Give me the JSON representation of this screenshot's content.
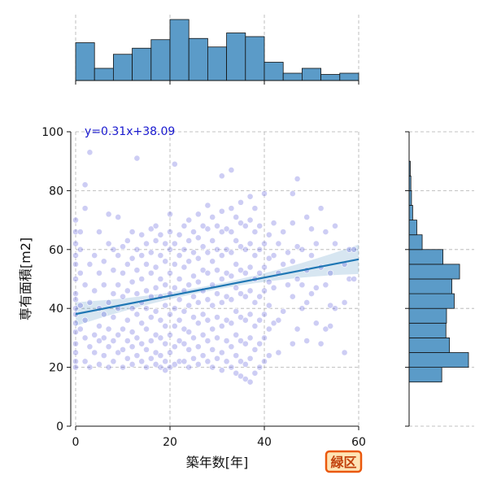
{
  "chart_data": {
    "type": "scatter",
    "main": {
      "xlabel": "築年数[年]",
      "ylabel": "専有面積[m2]",
      "xlim": [
        0,
        60
      ],
      "ylim": [
        0,
        100
      ],
      "xticks": [
        0,
        20,
        40,
        60
      ],
      "yticks": [
        0,
        20,
        40,
        60,
        80,
        100
      ],
      "grid": true,
      "regression": {
        "slope": 0.31,
        "intercept": 38.09,
        "label": "y=0.31x+38.09"
      },
      "points": [
        [
          0,
          20
        ],
        [
          0,
          22
        ],
        [
          0,
          25
        ],
        [
          0,
          28
        ],
        [
          0,
          32
        ],
        [
          0,
          35
        ],
        [
          0,
          38
        ],
        [
          0,
          40
        ],
        [
          0,
          43
        ],
        [
          0,
          45
        ],
        [
          0,
          50
        ],
        [
          0,
          55
        ],
        [
          0,
          58
        ],
        [
          0,
          62
        ],
        [
          0,
          66
        ],
        [
          0,
          70
        ],
        [
          1,
          33
        ],
        [
          1,
          41
        ],
        [
          1,
          52
        ],
        [
          1,
          60
        ],
        [
          1,
          66
        ],
        [
          2,
          22
        ],
        [
          2,
          30
        ],
        [
          2,
          36
        ],
        [
          2,
          48
        ],
        [
          2,
          74
        ],
        [
          2,
          82
        ],
        [
          3,
          20
        ],
        [
          3,
          27
        ],
        [
          3,
          42
        ],
        [
          3,
          55
        ],
        [
          3,
          93
        ],
        [
          4,
          25
        ],
        [
          4,
          31
        ],
        [
          4,
          46
        ],
        [
          4,
          58
        ],
        [
          5,
          21
        ],
        [
          5,
          29
        ],
        [
          5,
          34
        ],
        [
          5,
          40
        ],
        [
          5,
          52
        ],
        [
          5,
          66
        ],
        [
          6,
          24
        ],
        [
          6,
          30
        ],
        [
          6,
          38
        ],
        [
          6,
          48
        ],
        [
          6,
          56
        ],
        [
          7,
          20
        ],
        [
          7,
          27
        ],
        [
          7,
          33
        ],
        [
          7,
          42
        ],
        [
          7,
          62
        ],
        [
          7,
          72
        ],
        [
          8,
          22
        ],
        [
          8,
          29
        ],
        [
          8,
          37
        ],
        [
          8,
          45
        ],
        [
          8,
          53
        ],
        [
          8,
          60
        ],
        [
          9,
          25
        ],
        [
          9,
          31
        ],
        [
          9,
          40
        ],
        [
          9,
          48
        ],
        [
          9,
          58
        ],
        [
          9,
          71
        ],
        [
          10,
          20
        ],
        [
          10,
          26
        ],
        [
          10,
          33
        ],
        [
          10,
          44
        ],
        [
          10,
          52
        ],
        [
          10,
          61
        ],
        [
          11,
          23
        ],
        [
          11,
          29
        ],
        [
          11,
          36
        ],
        [
          11,
          46
        ],
        [
          11,
          55
        ],
        [
          11,
          63
        ],
        [
          12,
          21
        ],
        [
          12,
          27
        ],
        [
          12,
          32
        ],
        [
          12,
          40
        ],
        [
          12,
          49
        ],
        [
          12,
          57
        ],
        [
          12,
          66
        ],
        [
          13,
          24
        ],
        [
          13,
          30
        ],
        [
          13,
          38
        ],
        [
          13,
          45
        ],
        [
          13,
          53
        ],
        [
          13,
          60
        ],
        [
          13,
          91
        ],
        [
          14,
          22
        ],
        [
          14,
          28
        ],
        [
          14,
          35
        ],
        [
          14,
          42
        ],
        [
          14,
          50
        ],
        [
          14,
          58
        ],
        [
          14,
          65
        ],
        [
          15,
          20
        ],
        [
          15,
          26
        ],
        [
          15,
          33
        ],
        [
          15,
          40
        ],
        [
          15,
          46
        ],
        [
          15,
          55
        ],
        [
          15,
          62
        ],
        [
          16,
          23
        ],
        [
          16,
          29
        ],
        [
          16,
          37
        ],
        [
          16,
          44
        ],
        [
          16,
          52
        ],
        [
          16,
          59
        ],
        [
          16,
          67
        ],
        [
          17,
          21
        ],
        [
          17,
          25
        ],
        [
          17,
          31
        ],
        [
          17,
          39
        ],
        [
          17,
          47
        ],
        [
          17,
          54
        ],
        [
          17,
          63
        ],
        [
          17,
          68
        ],
        [
          18,
          20
        ],
        [
          18,
          24
        ],
        [
          18,
          30
        ],
        [
          18,
          36
        ],
        [
          18,
          44
        ],
        [
          18,
          50
        ],
        [
          18,
          58
        ],
        [
          18,
          65
        ],
        [
          19,
          19
        ],
        [
          19,
          22
        ],
        [
          19,
          28
        ],
        [
          19,
          34
        ],
        [
          19,
          41
        ],
        [
          19,
          48
        ],
        [
          19,
          56
        ],
        [
          19,
          62
        ],
        [
          20,
          20
        ],
        [
          20,
          25
        ],
        [
          20,
          31
        ],
        [
          20,
          38
        ],
        [
          20,
          45
        ],
        [
          20,
          52
        ],
        [
          20,
          60
        ],
        [
          20,
          66
        ],
        [
          20,
          72
        ],
        [
          21,
          21
        ],
        [
          21,
          27
        ],
        [
          21,
          34
        ],
        [
          21,
          40
        ],
        [
          21,
          47
        ],
        [
          21,
          55
        ],
        [
          21,
          62
        ],
        [
          21,
          89
        ],
        [
          22,
          22
        ],
        [
          22,
          29
        ],
        [
          22,
          36
        ],
        [
          22,
          43
        ],
        [
          22,
          50
        ],
        [
          22,
          58
        ],
        [
          22,
          65
        ],
        [
          23,
          22
        ],
        [
          23,
          28
        ],
        [
          23,
          33
        ],
        [
          23,
          39
        ],
        [
          23,
          46
        ],
        [
          23,
          54
        ],
        [
          23,
          60
        ],
        [
          23,
          68
        ],
        [
          24,
          20
        ],
        [
          24,
          26
        ],
        [
          24,
          32
        ],
        [
          24,
          41
        ],
        [
          24,
          48
        ],
        [
          24,
          56
        ],
        [
          24,
          63
        ],
        [
          24,
          70
        ],
        [
          25,
          23
        ],
        [
          25,
          30
        ],
        [
          25,
          37
        ],
        [
          25,
          44
        ],
        [
          25,
          51
        ],
        [
          25,
          59
        ],
        [
          25,
          66
        ],
        [
          26,
          21
        ],
        [
          26,
          27
        ],
        [
          26,
          35
        ],
        [
          26,
          42
        ],
        [
          26,
          49
        ],
        [
          26,
          57
        ],
        [
          26,
          64
        ],
        [
          26,
          72
        ],
        [
          27,
          24
        ],
        [
          27,
          31
        ],
        [
          27,
          38
        ],
        [
          27,
          46
        ],
        [
          27,
          53
        ],
        [
          27,
          61
        ],
        [
          27,
          68
        ],
        [
          28,
          22
        ],
        [
          28,
          29
        ],
        [
          28,
          36
        ],
        [
          28,
          43
        ],
        [
          28,
          52
        ],
        [
          28,
          59
        ],
        [
          28,
          67
        ],
        [
          28,
          75
        ],
        [
          29,
          20
        ],
        [
          29,
          26
        ],
        [
          29,
          33
        ],
        [
          29,
          41
        ],
        [
          29,
          48
        ],
        [
          29,
          56
        ],
        [
          29,
          63
        ],
        [
          29,
          71
        ],
        [
          30,
          23
        ],
        [
          30,
          30
        ],
        [
          30,
          37
        ],
        [
          30,
          45
        ],
        [
          30,
          53
        ],
        [
          30,
          60
        ],
        [
          30,
          68
        ],
        [
          31,
          19
        ],
        [
          31,
          25
        ],
        [
          31,
          34
        ],
        [
          31,
          42
        ],
        [
          31,
          50
        ],
        [
          31,
          58
        ],
        [
          31,
          66
        ],
        [
          31,
          73
        ],
        [
          31,
          85
        ],
        [
          32,
          22
        ],
        [
          32,
          29
        ],
        [
          32,
          36
        ],
        [
          32,
          44
        ],
        [
          32,
          52
        ],
        [
          32,
          60
        ],
        [
          32,
          67
        ],
        [
          33,
          20
        ],
        [
          33,
          27
        ],
        [
          33,
          35
        ],
        [
          33,
          43
        ],
        [
          33,
          51
        ],
        [
          33,
          59
        ],
        [
          33,
          66
        ],
        [
          33,
          74
        ],
        [
          33,
          87
        ],
        [
          34,
          18
        ],
        [
          34,
          24
        ],
        [
          34,
          31
        ],
        [
          34,
          39
        ],
        [
          34,
          47
        ],
        [
          34,
          55
        ],
        [
          34,
          63
        ],
        [
          34,
          71
        ],
        [
          35,
          17
        ],
        [
          35,
          22
        ],
        [
          35,
          29
        ],
        [
          35,
          37
        ],
        [
          35,
          45
        ],
        [
          35,
          53
        ],
        [
          35,
          61
        ],
        [
          35,
          69
        ],
        [
          35,
          76
        ],
        [
          36,
          16
        ],
        [
          36,
          21
        ],
        [
          36,
          28
        ],
        [
          36,
          36
        ],
        [
          36,
          44
        ],
        [
          36,
          52
        ],
        [
          36,
          60
        ],
        [
          36,
          68
        ],
        [
          37,
          15
        ],
        [
          37,
          23
        ],
        [
          37,
          30
        ],
        [
          37,
          38
        ],
        [
          37,
          46
        ],
        [
          37,
          54
        ],
        [
          37,
          62
        ],
        [
          37,
          70
        ],
        [
          37,
          78
        ],
        [
          38,
          18
        ],
        [
          38,
          26
        ],
        [
          38,
          34
        ],
        [
          38,
          42
        ],
        [
          38,
          50
        ],
        [
          38,
          58
        ],
        [
          38,
          66
        ],
        [
          38,
          74
        ],
        [
          39,
          20
        ],
        [
          39,
          28
        ],
        [
          39,
          36
        ],
        [
          39,
          44
        ],
        [
          39,
          52
        ],
        [
          39,
          60
        ],
        [
          39,
          68
        ],
        [
          40,
          22
        ],
        [
          40,
          30
        ],
        [
          40,
          38
        ],
        [
          40,
          46
        ],
        [
          40,
          54
        ],
        [
          40,
          62
        ],
        [
          40,
          79
        ],
        [
          41,
          24
        ],
        [
          41,
          33
        ],
        [
          41,
          41
        ],
        [
          41,
          49
        ],
        [
          41,
          57
        ],
        [
          41,
          65
        ],
        [
          42,
          35
        ],
        [
          42,
          47
        ],
        [
          42,
          58
        ],
        [
          42,
          69
        ],
        [
          43,
          25
        ],
        [
          43,
          36
        ],
        [
          43,
          52
        ],
        [
          43,
          62
        ],
        [
          44,
          39
        ],
        [
          44,
          55
        ],
        [
          44,
          66
        ],
        [
          45,
          48
        ],
        [
          45,
          59
        ],
        [
          46,
          28
        ],
        [
          46,
          44
        ],
        [
          46,
          56
        ],
        [
          46,
          69
        ],
        [
          46,
          79
        ],
        [
          47,
          33
        ],
        [
          47,
          50
        ],
        [
          47,
          61
        ],
        [
          47,
          84
        ],
        [
          48,
          40
        ],
        [
          48,
          48
        ],
        [
          48,
          60
        ],
        [
          49,
          29
        ],
        [
          49,
          42
        ],
        [
          49,
          53
        ],
        [
          49,
          71
        ],
        [
          50,
          45
        ],
        [
          50,
          58
        ],
        [
          50,
          67
        ],
        [
          51,
          35
        ],
        [
          51,
          47
        ],
        [
          51,
          62
        ],
        [
          52,
          28
        ],
        [
          52,
          54
        ],
        [
          52,
          74
        ],
        [
          53,
          33
        ],
        [
          53,
          48
        ],
        [
          53,
          66
        ],
        [
          54,
          34
        ],
        [
          54,
          41
        ],
        [
          54,
          52
        ],
        [
          55,
          40
        ],
        [
          55,
          62
        ],
        [
          55,
          68
        ],
        [
          57,
          25
        ],
        [
          57,
          42
        ],
        [
          57,
          55
        ],
        [
          58,
          50
        ],
        [
          58,
          60
        ],
        [
          59,
          50
        ],
        [
          59,
          60
        ]
      ]
    },
    "top_histogram": {
      "bin_edges": [
        0,
        4,
        8,
        12,
        16,
        20,
        24,
        28,
        32,
        36,
        40,
        44,
        48,
        52,
        56,
        60
      ],
      "relative_heights": [
        0.62,
        0.2,
        0.43,
        0.53,
        0.67,
        1.0,
        0.69,
        0.55,
        0.78,
        0.72,
        0.3,
        0.12,
        0.2,
        0.1,
        0.12
      ]
    },
    "right_histogram": {
      "bin_edges": [
        15,
        20,
        25,
        30,
        35,
        40,
        45,
        50,
        55,
        60,
        65,
        70,
        75,
        80,
        85,
        90,
        95,
        100
      ],
      "relative_heights": [
        0.55,
        1.0,
        0.68,
        0.62,
        0.63,
        0.76,
        0.72,
        0.85,
        0.57,
        0.22,
        0.13,
        0.06,
        0.04,
        0.03,
        0.02,
        0.0,
        0.0
      ]
    },
    "colors": {
      "points": "#4a4ad8",
      "line": "#1f77b4",
      "band": "#1f77b4",
      "hist_fill": "#5b9bc8",
      "hist_stroke": "#111111",
      "grid": "#b0b0b0",
      "badge_border": "#ea580c",
      "badge_fill": "#ffe4b5"
    }
  },
  "badge": {
    "label": "緑区"
  }
}
